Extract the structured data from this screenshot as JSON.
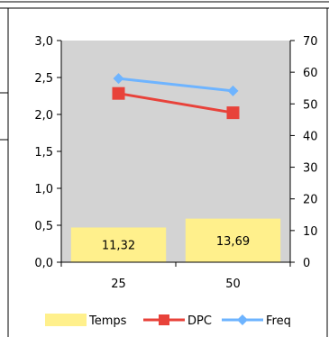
{
  "chart_data": {
    "type": "bar",
    "categories": [
      "25",
      "50"
    ],
    "series": [
      {
        "name": "Temps",
        "kind": "bar",
        "axis": "left",
        "values": [
          0.47,
          0.59
        ],
        "labels": [
          "11,32",
          "13,69"
        ],
        "color": "#FFF08C"
      },
      {
        "name": "DPC",
        "kind": "line",
        "axis": "right",
        "marker": "square",
        "values": [
          53.3,
          47.2
        ],
        "color": "#E8423A"
      },
      {
        "name": "Freq",
        "kind": "line",
        "axis": "right",
        "marker": "diamond",
        "values": [
          58.0,
          54.1
        ],
        "color": "#6EB4FF"
      }
    ],
    "y_left": {
      "ylim": [
        0,
        3.0
      ],
      "ticks": [
        "0,0",
        "0,5",
        "1,0",
        "1,5",
        "2,0",
        "2,5",
        "3,0"
      ]
    },
    "y_right": {
      "ylim": [
        0,
        70
      ],
      "ticks": [
        "0",
        "10",
        "20",
        "30",
        "40",
        "50",
        "60",
        "70"
      ]
    },
    "plot_background": "#D3D3D3",
    "grid": false,
    "legend_position": "bottom"
  }
}
